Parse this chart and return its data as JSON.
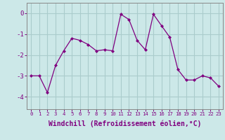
{
  "x": [
    0,
    1,
    2,
    3,
    4,
    5,
    6,
    7,
    8,
    9,
    10,
    11,
    12,
    13,
    14,
    15,
    16,
    17,
    18,
    19,
    20,
    21,
    22,
    23
  ],
  "y": [
    -3.0,
    -3.0,
    -3.8,
    -2.5,
    -1.8,
    -1.2,
    -1.3,
    -1.5,
    -1.8,
    -1.75,
    -1.8,
    -0.05,
    -0.3,
    -1.3,
    -1.75,
    -0.05,
    -0.6,
    -1.15,
    -2.7,
    -3.2,
    -3.2,
    -3.0,
    -3.1,
    -3.5
  ],
  "line_color": "#800080",
  "marker": "D",
  "marker_size": 2,
  "bg_color": "#cce8e8",
  "grid_color": "#aacccc",
  "tick_color": "#800080",
  "xlabel": "Windchill (Refroidissement éolien,°C)",
  "xlabel_fontsize": 7,
  "xtick_labels": [
    "0",
    "1",
    "2",
    "3",
    "4",
    "5",
    "6",
    "7",
    "8",
    "9",
    "10",
    "11",
    "12",
    "13",
    "14",
    "15",
    "16",
    "17",
    "18",
    "19",
    "20",
    "21",
    "22",
    "23"
  ],
  "yticks": [
    0,
    -1,
    -2,
    -3,
    -4
  ],
  "ylim": [
    -4.6,
    0.5
  ],
  "xlim": [
    -0.5,
    23.5
  ]
}
